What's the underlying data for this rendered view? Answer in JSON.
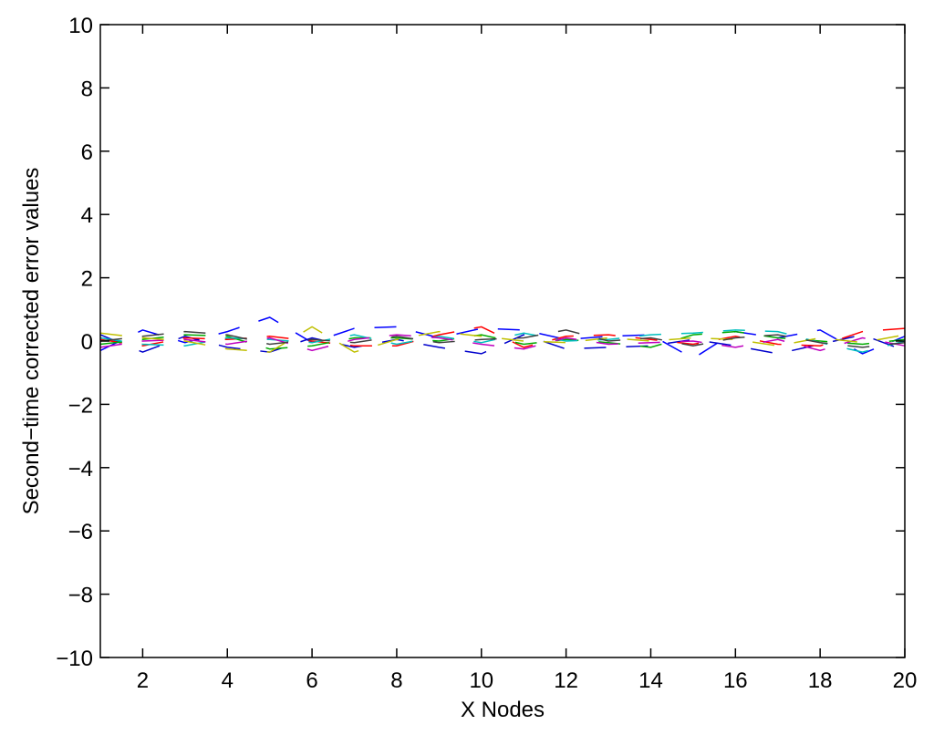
{
  "chart_data": {
    "type": "line",
    "title": "",
    "xlabel": "X Nodes",
    "ylabel": "Second−time corrected error values",
    "xlim": [
      1,
      20
    ],
    "ylim": [
      -10,
      10
    ],
    "x_ticks": [
      2,
      4,
      6,
      8,
      10,
      12,
      14,
      16,
      18,
      20
    ],
    "x_tick_labels": [
      "2",
      "4",
      "6",
      "8",
      "10",
      "12",
      "14",
      "16",
      "18",
      "20"
    ],
    "y_ticks": [
      -10,
      -8,
      -6,
      -4,
      -2,
      0,
      2,
      4,
      6,
      8,
      10
    ],
    "y_tick_labels": [
      "−10",
      "−8",
      "−6",
      "−4",
      "−2",
      "0",
      "2",
      "4",
      "6",
      "8",
      "10"
    ],
    "grid": false,
    "legend": "none",
    "x": [
      1,
      2,
      3,
      4,
      5,
      6,
      7,
      8,
      9,
      10,
      11,
      12,
      13,
      14,
      15,
      16,
      17,
      18,
      19,
      20
    ],
    "series": [
      {
        "color": "#0000ff",
        "values": [
          -0.3,
          0.35,
          -0.05,
          0.3,
          0.75,
          -0.05,
          0.4,
          0.45,
          0.1,
          0.4,
          0.35,
          0.05,
          0.15,
          0.2,
          -0.55,
          0.3,
          0.1,
          0.35,
          -0.4,
          0.15
        ]
      },
      {
        "color": "#0000cc",
        "values": [
          0.2,
          -0.35,
          0.15,
          -0.2,
          -0.35,
          0.1,
          -0.2,
          0.05,
          -0.2,
          -0.4,
          0.2,
          -0.25,
          -0.2,
          -0.15,
          0.05,
          -0.15,
          -0.4,
          -0.1,
          0.2,
          -0.3
        ]
      },
      {
        "color": "#ff0000",
        "values": [
          0.05,
          -0.15,
          0.1,
          0.05,
          0.15,
          0.0,
          -0.15,
          -0.15,
          0.2,
          0.45,
          -0.2,
          0.15,
          0.2,
          0.05,
          -0.1,
          0.15,
          -0.1,
          -0.15,
          0.3,
          0.4
        ]
      },
      {
        "color": "#00aa00",
        "values": [
          -0.1,
          0.05,
          0.2,
          0.15,
          -0.25,
          -0.15,
          0.1,
          0.1,
          0.0,
          0.2,
          -0.1,
          0.05,
          -0.05,
          -0.2,
          0.2,
          0.3,
          0.1,
          0.0,
          -0.1,
          0.05
        ]
      },
      {
        "color": "#00bfbf",
        "values": [
          0.1,
          -0.1,
          -0.15,
          0.1,
          0.05,
          -0.05,
          0.2,
          -0.1,
          0.15,
          -0.05,
          0.25,
          0.0,
          0.05,
          0.2,
          0.25,
          0.35,
          0.3,
          -0.05,
          -0.35,
          0.0
        ]
      },
      {
        "color": "#bf00bf",
        "values": [
          -0.2,
          0.0,
          0.05,
          -0.1,
          0.1,
          -0.3,
          0.05,
          0.2,
          0.1,
          -0.1,
          -0.25,
          0.1,
          -0.1,
          -0.05,
          0.0,
          -0.2,
          0.05,
          -0.3,
          0.1,
          -0.15
        ]
      },
      {
        "color": "#bfbf00",
        "values": [
          0.25,
          0.1,
          0.0,
          -0.25,
          -0.35,
          0.45,
          -0.35,
          0.05,
          0.3,
          0.15,
          0.0,
          -0.05,
          0.1,
          0.0,
          0.1,
          0.05,
          -0.15,
          0.1,
          -0.05,
          0.2
        ]
      },
      {
        "color": "#404040",
        "values": [
          0.0,
          0.15,
          0.3,
          0.2,
          -0.1,
          0.05,
          -0.05,
          0.15,
          -0.05,
          0.05,
          0.1,
          0.35,
          0.0,
          0.1,
          -0.15,
          0.1,
          0.2,
          -0.05,
          -0.2,
          -0.05
        ]
      }
    ]
  }
}
